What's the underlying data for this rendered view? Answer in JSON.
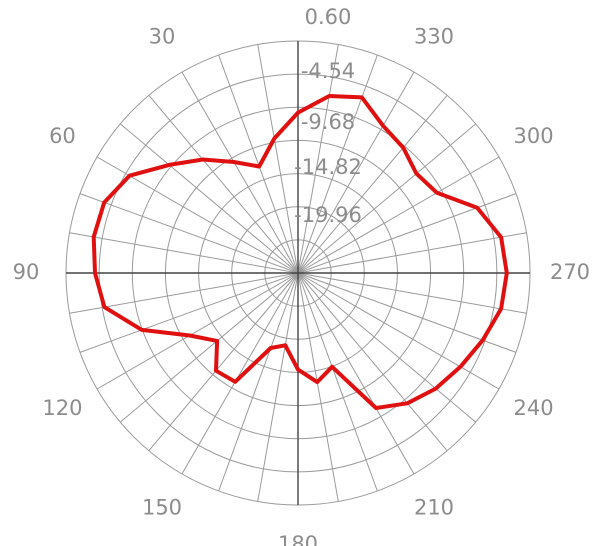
{
  "chart_data": {
    "type": "polar",
    "angle_unit": "degrees",
    "angle_direction": "counterclockwise",
    "zero_direction": "top",
    "angular_ticks": [
      "0",
      "30",
      "60",
      "90",
      "120",
      "150",
      "180",
      "210",
      "240",
      "270",
      "300",
      "330"
    ],
    "angular_tick_labels_shown": [
      "",
      "30",
      "60",
      "90",
      "120",
      "150",
      "180",
      "210",
      "240",
      "270",
      "300",
      "330"
    ],
    "radial_tick_labels": [
      "0.60",
      "-4.54",
      "-9.68",
      "-14.82",
      "-19.96"
    ],
    "radial_range": [
      -35.38,
      0.6
    ],
    "spoke_step_deg": 10,
    "ring_count": 7,
    "grid": true,
    "trace_color": "#e01010",
    "series": [
      {
        "theta": [
          0,
          10,
          20,
          30,
          40,
          50,
          60,
          70,
          80,
          90,
          100,
          110,
          120,
          130,
          140,
          150,
          160,
          170,
          180,
          190,
          200,
          210,
          220,
          230,
          240,
          250,
          260,
          270,
          280,
          290,
          300,
          310,
          320,
          330,
          340,
          350,
          360
        ],
        "r": [
          -10.5,
          -14.2,
          -17.8,
          -15.5,
          -12.4,
          -9.3,
          -5.2,
          -3.4,
          -3.2,
          -3.9,
          -4.9,
          -9.6,
          -16.0,
          -19.0,
          -15.6,
          -15.9,
          -23.0,
          -24.0,
          -20.4,
          -18.2,
          -19.9,
          -11.2,
          -9.0,
          -7.5,
          -6.3,
          -4.9,
          -3.4,
          -3.0,
          -3.4,
          -5.8,
          -10.5,
          -11.4,
          -10.0,
          -9.0,
          -6.4,
          -7.5,
          -10.5
        ]
      }
    ]
  }
}
